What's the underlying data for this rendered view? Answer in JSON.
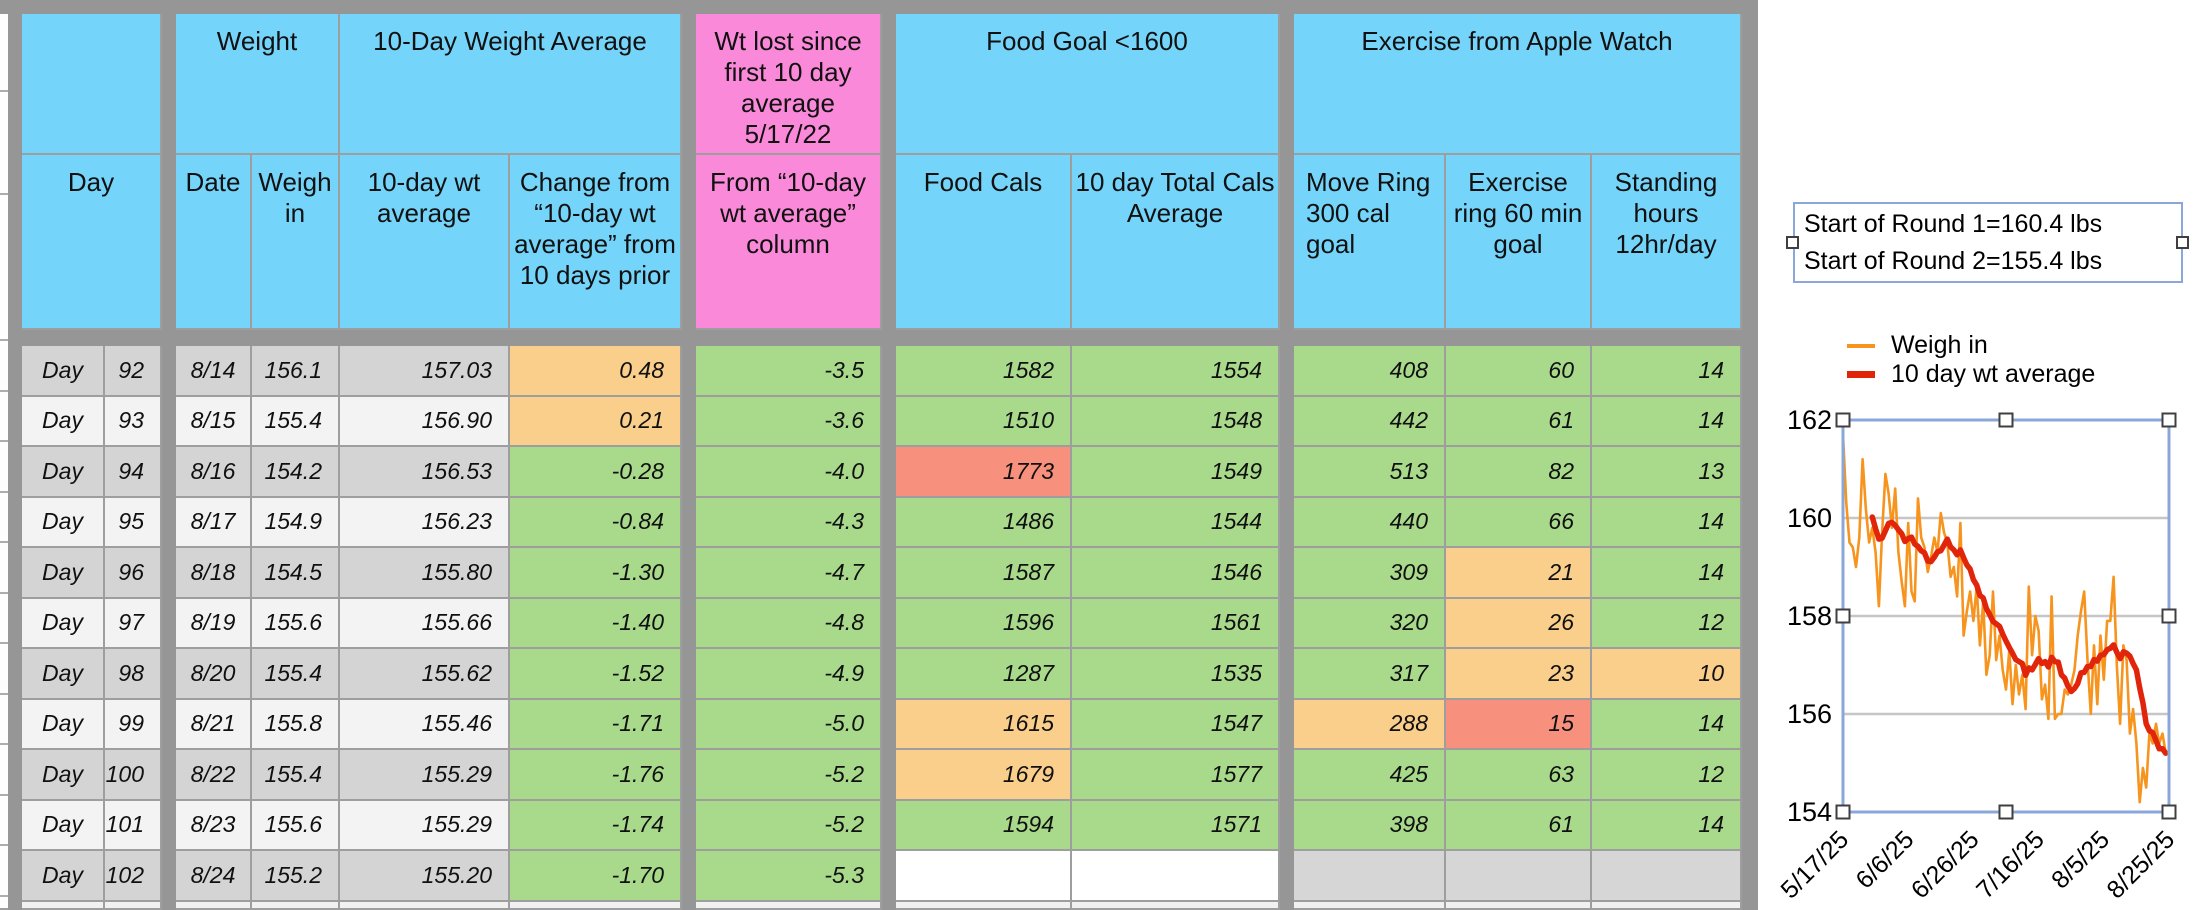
{
  "table": {
    "group_headers": {
      "weight": "Weight",
      "weight_average": "10-Day Weight Average",
      "wt_lost": "Wt lost since first 10 day average 5/17/22",
      "food_goal": "Food Goal <1600",
      "exercise": "Exercise from Apple Watch"
    },
    "column_headers": {
      "day": "Day",
      "date": "Date",
      "weigh_in": "Weigh in",
      "avg10": "10-day wt average",
      "change": "Change from “10-day wt average” from 10 days prior",
      "from_avg": "From “10-day wt average” column",
      "food_cals": "Food Cals",
      "cals_avg10": "10 day Total Cals Average",
      "move_ring": "Move Ring 300 cal goal",
      "exercise_ring": "Exercise ring 60 min goal",
      "standing": "Standing hours 12hr/day"
    },
    "rows": [
      {
        "day_label": "Day",
        "day_num": "92",
        "date": "8/14",
        "weigh_in": "156.1",
        "avg10": "157.03",
        "change": "0.48",
        "change_c": "o",
        "from_avg": "-3.5",
        "from_c": "g",
        "food": "1582",
        "food_c": "g",
        "cals10": "1554",
        "cals10_c": "g",
        "move": "408",
        "move_c": "g",
        "ex": "60",
        "ex_c": "g",
        "stand": "14",
        "stand_c": "g",
        "shade": "dark"
      },
      {
        "day_label": "Day",
        "day_num": "93",
        "date": "8/15",
        "weigh_in": "155.4",
        "avg10": "156.90",
        "change": "0.21",
        "change_c": "o",
        "from_avg": "-3.6",
        "from_c": "g",
        "food": "1510",
        "food_c": "g",
        "cals10": "1548",
        "cals10_c": "g",
        "move": "442",
        "move_c": "g",
        "ex": "61",
        "ex_c": "g",
        "stand": "14",
        "stand_c": "g",
        "shade": "light"
      },
      {
        "day_label": "Day",
        "day_num": "94",
        "date": "8/16",
        "weigh_in": "154.2",
        "avg10": "156.53",
        "change": "-0.28",
        "change_c": "g",
        "from_avg": "-4.0",
        "from_c": "g",
        "food": "1773",
        "food_c": "r",
        "cals10": "1549",
        "cals10_c": "g",
        "move": "513",
        "move_c": "g",
        "ex": "82",
        "ex_c": "g",
        "stand": "13",
        "stand_c": "g",
        "shade": "dark"
      },
      {
        "day_label": "Day",
        "day_num": "95",
        "date": "8/17",
        "weigh_in": "154.9",
        "avg10": "156.23",
        "change": "-0.84",
        "change_c": "g",
        "from_avg": "-4.3",
        "from_c": "g",
        "food": "1486",
        "food_c": "g",
        "cals10": "1544",
        "cals10_c": "g",
        "move": "440",
        "move_c": "g",
        "ex": "66",
        "ex_c": "g",
        "stand": "14",
        "stand_c": "g",
        "shade": "light"
      },
      {
        "day_label": "Day",
        "day_num": "96",
        "date": "8/18",
        "weigh_in": "154.5",
        "avg10": "155.80",
        "change": "-1.30",
        "change_c": "g",
        "from_avg": "-4.7",
        "from_c": "g",
        "food": "1587",
        "food_c": "g",
        "cals10": "1546",
        "cals10_c": "g",
        "move": "309",
        "move_c": "g",
        "ex": "21",
        "ex_c": "o",
        "stand": "14",
        "stand_c": "g",
        "shade": "dark"
      },
      {
        "day_label": "Day",
        "day_num": "97",
        "date": "8/19",
        "weigh_in": "155.6",
        "avg10": "155.66",
        "change": "-1.40",
        "change_c": "g",
        "from_avg": "-4.8",
        "from_c": "g",
        "food": "1596",
        "food_c": "g",
        "cals10": "1561",
        "cals10_c": "g",
        "move": "320",
        "move_c": "g",
        "ex": "26",
        "ex_c": "o",
        "stand": "12",
        "stand_c": "g",
        "shade": "light"
      },
      {
        "day_label": "Day",
        "day_num": "98",
        "date": "8/20",
        "weigh_in": "155.4",
        "avg10": "155.62",
        "change": "-1.52",
        "change_c": "g",
        "from_avg": "-4.9",
        "from_c": "g",
        "food": "1287",
        "food_c": "g",
        "cals10": "1535",
        "cals10_c": "g",
        "move": "317",
        "move_c": "g",
        "ex": "23",
        "ex_c": "o",
        "stand": "10",
        "stand_c": "o",
        "shade": "dark"
      },
      {
        "day_label": "Day",
        "day_num": "99",
        "date": "8/21",
        "weigh_in": "155.8",
        "avg10": "155.46",
        "change": "-1.71",
        "change_c": "g",
        "from_avg": "-5.0",
        "from_c": "g",
        "food": "1615",
        "food_c": "o",
        "cals10": "1547",
        "cals10_c": "g",
        "move": "288",
        "move_c": "o",
        "ex": "15",
        "ex_c": "r",
        "stand": "14",
        "stand_c": "g",
        "shade": "light"
      },
      {
        "day_label": "Day",
        "day_num": "100",
        "date": "8/22",
        "weigh_in": "155.4",
        "avg10": "155.29",
        "change": "-1.76",
        "change_c": "g",
        "from_avg": "-5.2",
        "from_c": "g",
        "food": "1679",
        "food_c": "o",
        "cals10": "1577",
        "cals10_c": "g",
        "move": "425",
        "move_c": "g",
        "ex": "63",
        "ex_c": "g",
        "stand": "12",
        "stand_c": "g",
        "shade": "dark"
      },
      {
        "day_label": "Day",
        "day_num": "101",
        "date": "8/23",
        "weigh_in": "155.6",
        "avg10": "155.29",
        "change": "-1.74",
        "change_c": "g",
        "from_avg": "-5.2",
        "from_c": "g",
        "food": "1594",
        "food_c": "g",
        "cals10": "1571",
        "cals10_c": "g",
        "move": "398",
        "move_c": "g",
        "ex": "61",
        "ex_c": "g",
        "stand": "14",
        "stand_c": "g",
        "shade": "light"
      },
      {
        "day_label": "Day",
        "day_num": "102",
        "date": "8/24",
        "weigh_in": "155.2",
        "avg10": "155.20",
        "change": "-1.70",
        "change_c": "g",
        "from_avg": "-5.3",
        "from_c": "g",
        "food": "",
        "food_c": "w",
        "cals10": "",
        "cals10_c": "w",
        "move": "",
        "move_c": "e",
        "ex": "",
        "ex_c": "e",
        "stand": "",
        "stand_c": "e",
        "shade": "dark"
      }
    ]
  },
  "annotation_box": {
    "line1": "Start of Round 1=160.4 lbs",
    "line2": "Start of Round 2=155.4 lbs"
  },
  "chart_data": {
    "type": "line",
    "x_start_date": "5/17/25",
    "x_tick_labels": [
      "5/17/25",
      "6/6/25",
      "6/26/25",
      "7/16/25",
      "8/5/25",
      "8/25/25"
    ],
    "x_tick_day_index": [
      0,
      20,
      40,
      60,
      80,
      100
    ],
    "y_ticks": [
      154,
      156,
      158,
      160,
      162
    ],
    "ylim": [
      154,
      162
    ],
    "grid": true,
    "legend_position": "top-left",
    "series": [
      {
        "name": "Weigh in",
        "color": "#F7941E",
        "values": [
          161.7,
          160.3,
          159.5,
          159.4,
          159.0,
          159.6,
          161.2,
          160.2,
          159.5,
          159.8,
          159.3,
          158.2,
          159.7,
          160.9,
          160.5,
          159.8,
          160.6,
          159.3,
          158.7,
          158.2,
          159.9,
          158.5,
          158.3,
          160.4,
          159.6,
          159.4,
          158.9,
          159.2,
          159.6,
          159.3,
          160.1,
          159.7,
          159.5,
          158.8,
          159.0,
          158.4,
          159.9,
          157.6,
          158.1,
          158.5,
          157.9,
          158.6,
          157.4,
          158.3,
          156.8,
          157.2,
          158.5,
          157.1,
          157.6,
          156.9,
          156.5,
          157.3,
          156.2,
          157.0,
          156.4,
          156.8,
          156.1,
          158.6,
          157.2,
          158.0,
          157.7,
          156.3,
          156.6,
          155.9,
          158.4,
          155.9,
          156.0,
          156.0,
          156.5,
          156.4,
          156.6,
          156.9,
          157.6,
          158.1,
          158.5,
          157.1,
          156.0,
          157.4,
          156.2,
          157.6,
          156.7,
          157.9,
          157.9,
          158.8,
          157.0,
          155.8,
          157.4,
          157.1,
          155.6,
          156.1,
          155.4,
          154.2,
          154.9,
          154.5,
          155.6,
          155.4,
          155.8,
          155.4,
          155.6,
          155.2
        ]
      },
      {
        "name": "10 day wt average",
        "color": "#E1250B",
        "derived_from": "10-day rolling mean of Weigh in",
        "last_value": 155.2
      }
    ]
  },
  "colors": {
    "header_blue": "#74D4F9",
    "header_pink": "#FA8AD9",
    "green": "#A9DA8C",
    "orange": "#FACE8B",
    "salmon": "#F7917E",
    "row_dark": "#D4D4D4",
    "row_light": "#F3F3F3",
    "empty_gray": "#D6D6D6",
    "frame_gray": "#969696",
    "thin_border": "#9E9E9E",
    "weigh_line": "#F7941E",
    "avg_line": "#E1250B",
    "selection_blue": "#8BA7D9",
    "gridline_gray": "#C6C6C6"
  }
}
